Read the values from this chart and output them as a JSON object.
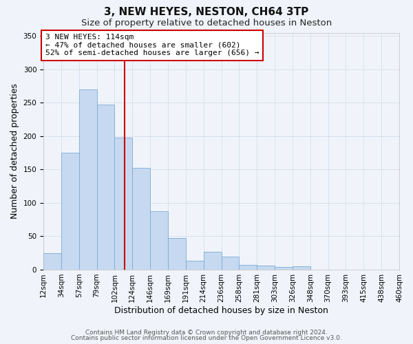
{
  "title": "3, NEW HEYES, NESTON, CH64 3TP",
  "subtitle": "Size of property relative to detached houses in Neston",
  "xlabel": "Distribution of detached houses by size in Neston",
  "ylabel": "Number of detached properties",
  "categories": [
    "12sqm",
    "34sqm",
    "57sqm",
    "79sqm",
    "102sqm",
    "124sqm",
    "146sqm",
    "169sqm",
    "191sqm",
    "214sqm",
    "236sqm",
    "258sqm",
    "281sqm",
    "303sqm",
    "326sqm",
    "348sqm",
    "370sqm",
    "393sqm",
    "415sqm",
    "438sqm",
    "460sqm"
  ],
  "bar_heights": [
    25,
    175,
    270,
    247,
    198,
    153,
    88,
    47,
    13,
    27,
    20,
    7,
    6,
    4,
    5,
    0,
    0,
    0,
    0,
    0
  ],
  "bar_color": "#c6d9f1",
  "bar_edge_color": "#7aabd1",
  "vline_position": 4.5,
  "vline_color": "#cc0000",
  "ylim": [
    0,
    355
  ],
  "yticks": [
    0,
    50,
    100,
    150,
    200,
    250,
    300,
    350
  ],
  "annotation_text_line1": "3 NEW HEYES: 114sqm",
  "annotation_text_line2": "← 47% of detached houses are smaller (602)",
  "annotation_text_line3": "52% of semi-detached houses are larger (656) →",
  "footer_line1": "Contains HM Land Registry data © Crown copyright and database right 2024.",
  "footer_line2": "Contains public sector information licensed under the Open Government Licence v3.0.",
  "background_color": "#f0f4fa",
  "grid_color": "#d0d8e8",
  "title_fontsize": 11,
  "subtitle_fontsize": 9.5,
  "axis_label_fontsize": 9,
  "tick_fontsize": 7.5,
  "footer_fontsize": 6.5,
  "annotation_fontsize": 8
}
